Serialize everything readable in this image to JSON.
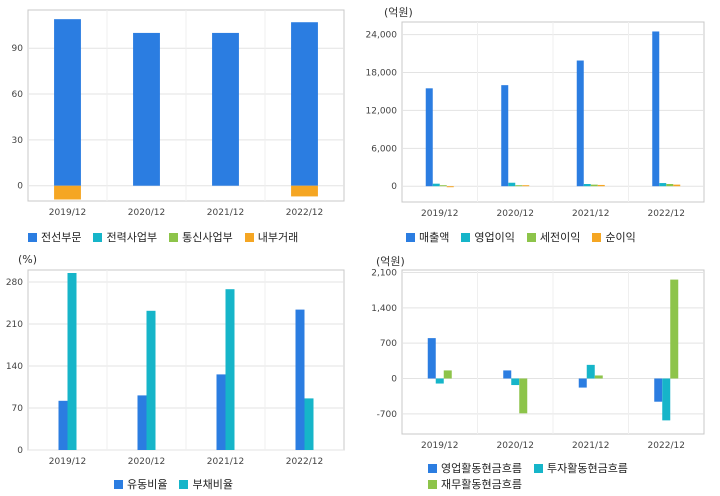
{
  "chart_data": [
    {
      "type": "bar",
      "categories": [
        "2019/12",
        "2020/12",
        "2021/12",
        "2022/12"
      ],
      "unit": "",
      "ylim": [
        -10,
        115
      ],
      "yticks": [
        0,
        30,
        60,
        90
      ],
      "yticklabels": [
        "0",
        "30",
        "60",
        "90"
      ],
      "stacked": true,
      "grid": true,
      "series": [
        {
          "name": "전선부문",
          "color": "#2b7de1",
          "values": [
            109,
            100,
            100,
            107
          ]
        },
        {
          "name": "전력사업부",
          "color": "#16b5c9",
          "values": [
            0,
            0,
            0,
            0
          ]
        },
        {
          "name": "통신사업부",
          "color": "#8dc44a",
          "values": [
            0,
            0,
            0,
            0
          ]
        },
        {
          "name": "내부거래",
          "color": "#f5a623",
          "values": [
            -9,
            0,
            0,
            -7
          ]
        }
      ],
      "legend": "bottom"
    },
    {
      "type": "bar",
      "categories": [
        "2019/12",
        "2020/12",
        "2021/12",
        "2022/12"
      ],
      "unit": "(억원)",
      "ylim": [
        -2500,
        26000
      ],
      "yticks": [
        0,
        6000,
        12000,
        18000,
        24000
      ],
      "yticklabels": [
        "0",
        "6,000",
        "12,000",
        "18,000",
        "24,000"
      ],
      "grid": true,
      "series": [
        {
          "name": "매출액",
          "color": "#2b7de1",
          "values": [
            15500,
            16000,
            19900,
            24500
          ]
        },
        {
          "name": "영업이익",
          "color": "#16b5c9",
          "values": [
            400,
            550,
            350,
            500
          ]
        },
        {
          "name": "세전이익",
          "color": "#8dc44a",
          "values": [
            80,
            150,
            250,
            350
          ]
        },
        {
          "name": "순이익",
          "color": "#f5a623",
          "values": [
            -120,
            60,
            200,
            250
          ]
        }
      ],
      "legend": "bottom"
    },
    {
      "type": "bar",
      "categories": [
        "2019/12",
        "2020/12",
        "2021/12",
        "2022/12"
      ],
      "unit": "(%)",
      "ylim": [
        0,
        300
      ],
      "yticks": [
        0,
        70,
        140,
        210,
        280
      ],
      "yticklabels": [
        "0",
        "70",
        "140",
        "210",
        "280"
      ],
      "grid": true,
      "series": [
        {
          "name": "유동비율",
          "color": "#2b7de1",
          "values": [
            82,
            91,
            126,
            234
          ]
        },
        {
          "name": "부채비율",
          "color": "#16b5c9",
          "values": [
            295,
            232,
            268,
            86
          ]
        }
      ],
      "legend": "bottom"
    },
    {
      "type": "bar",
      "categories": [
        "2019/12",
        "2020/12",
        "2021/12",
        "2022/12"
      ],
      "unit": "(억원)",
      "ylim": [
        -1100,
        2150
      ],
      "yticks": [
        -700,
        0,
        700,
        1400,
        2100
      ],
      "yticklabels": [
        "-700",
        "0",
        "700",
        "1,400",
        "2,100"
      ],
      "grid": true,
      "series": [
        {
          "name": "영업활동현금흐름",
          "color": "#2b7de1",
          "values": [
            800,
            160,
            -180,
            -460
          ]
        },
        {
          "name": "투자활동현금흐름",
          "color": "#16b5c9",
          "values": [
            -100,
            -130,
            270,
            -830
          ]
        },
        {
          "name": "재무활동현금흐름",
          "color": "#8dc44a",
          "values": [
            160,
            -690,
            60,
            1960
          ]
        }
      ],
      "legend": "bottom"
    }
  ]
}
